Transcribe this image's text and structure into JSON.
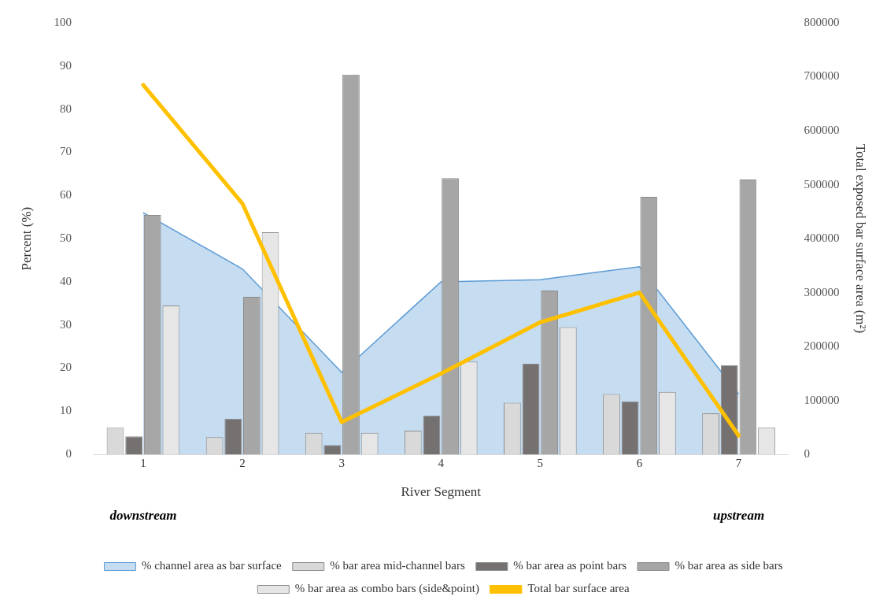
{
  "chart_data": {
    "type": "bar",
    "xlabel": "River Segment",
    "ylabel": "Percent (%)",
    "y2label": "Total exposed bar surface area (m²)",
    "categories": [
      "1",
      "2",
      "3",
      "4",
      "5",
      "6",
      "7"
    ],
    "series": [
      {
        "name": "% channel area as bar surface",
        "type": "area",
        "color": "#5b9bd5",
        "values": [
          56,
          43,
          19,
          40,
          40.5,
          43.5,
          14
        ]
      },
      {
        "name": "% bar area mid-channel bars",
        "color": "#d9d9d9",
        "values": [
          6.2,
          4,
          5,
          5.5,
          12,
          14,
          9.5
        ]
      },
      {
        "name": "% bar area as point bars",
        "color": "#767171",
        "values": [
          4.2,
          8.3,
          2.2,
          9,
          21,
          12.3,
          20.7
        ]
      },
      {
        "name": "% bar area as side bars",
        "color": "#a6a6a6",
        "values": [
          55.5,
          36.5,
          88,
          64,
          38,
          59.7,
          63.7
        ]
      },
      {
        "name": "% bar area as combo bars (side&point)",
        "color": "#e7e6e6",
        "values": [
          34.5,
          51.5,
          5,
          21.5,
          29.5,
          14.5,
          6.3
        ]
      },
      {
        "name": "Total bar surface area",
        "type": "line",
        "axis": "y2",
        "color": "#ffc000",
        "values": [
          685000,
          465000,
          60000,
          150000,
          245000,
          300000,
          35000
        ]
      }
    ],
    "ylim": [
      0,
      100
    ],
    "yticks": [
      0,
      10,
      20,
      30,
      40,
      50,
      60,
      70,
      80,
      90,
      100
    ],
    "y2lim": [
      0,
      800000
    ],
    "y2ticks": [
      0,
      100000,
      200000,
      300000,
      400000,
      500000,
      600000,
      700000,
      800000
    ],
    "annotations": [
      "downstream",
      "upstream"
    ],
    "grid": false,
    "legend": "bottom",
    "marker": "none"
  }
}
